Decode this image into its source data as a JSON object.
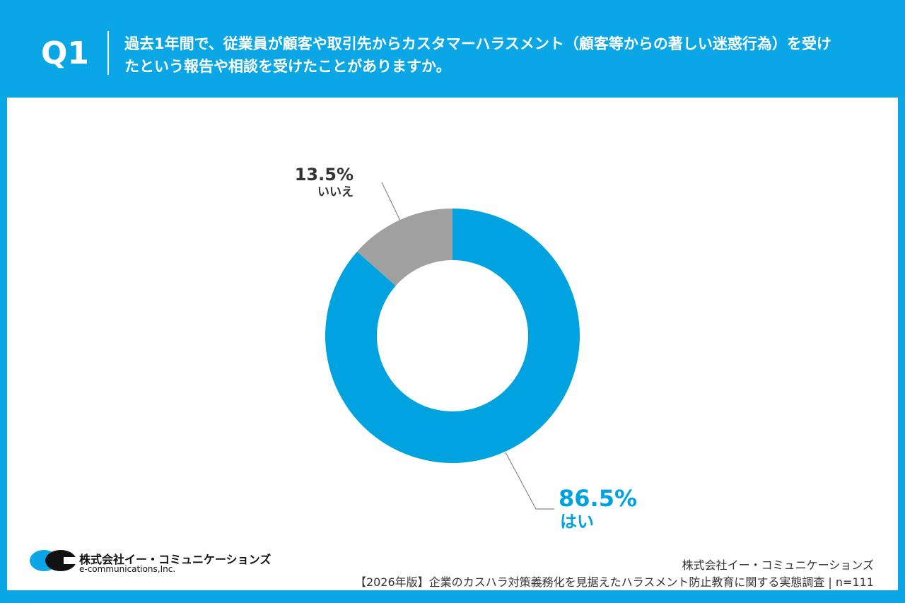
{
  "header": {
    "q_label": "Q1",
    "question": "過去1年間で、従業員が顧客や取引先からカスタマーハラスメント（顧客等からの著しい迷惑行為）を受けたという報告や相談を受けたことがありますか。"
  },
  "chart_data": {
    "type": "pie",
    "title": "過去1年間で、従業員が顧客や取引先からカスタマーハラスメント（顧客等からの著しい迷惑行為）を受けたという報告や相談を受けたことがありますか。",
    "categories": [
      "はい",
      "いいえ"
    ],
    "values": [
      86.5,
      13.5
    ],
    "value_labels": [
      "86.5%",
      "13.5%"
    ],
    "colors": [
      "#00a3e0",
      "#a0a0a0"
    ],
    "donut": true
  },
  "footer": {
    "logo_jp": "株式会社イー・コミュニケーションズ",
    "logo_en": "e-communications,Inc.",
    "company": "株式会社イー・コミュニケーションズ",
    "survey": "【2026年版】企業のカスハラ対策義務化を見据えたハラスメント防止教育に関する実態調査 | n=111"
  }
}
